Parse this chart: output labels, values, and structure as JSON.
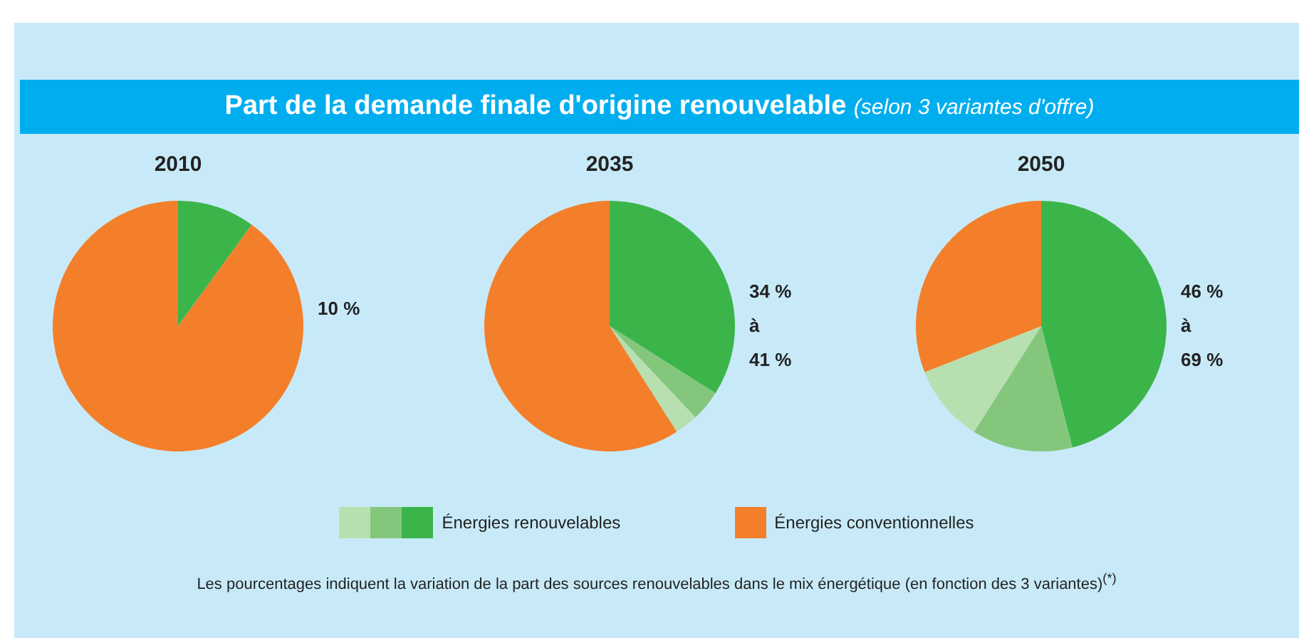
{
  "chart_data": [
    {
      "type": "other",
      "title": "Part de la demande finale d'origine renouvelable",
      "subtitle": "(selon 3 variantes d'offre)",
      "annotations": [
        "Les pourcentages indiquent la variation de la part des sources renouvelables dans le mix énergétique (en fonction des 3 variantes)$^{(*)}$"
      ]
    },
    {
      "type": "pie",
      "title": "2010",
      "categories": [
        null,
        null
      ],
      "values": [
        10,
        90
      ],
      "colors": [
        "#3bb54a",
        "#f47f2a"
      ],
      "annotations": [
        "10 %"
      ]
    },
    {
      "type": "pie",
      "title": "2035",
      "categories": [
        null,
        null,
        null,
        null
      ],
      "values": [
        34,
        4,
        3,
        59
      ],
      "colors": [
        "#3bb54a",
        "#84c77c",
        "#b8dfb0",
        "#f47f2a"
      ],
      "annotations": [
        "34 %",
        "à",
        "41 %"
      ]
    },
    {
      "type": "pie",
      "title": "2050",
      "categories": [
        "Énergies renouvelables",
        null,
        null,
        "Énergies conventionnelles"
      ],
      "values": [
        46,
        13,
        10,
        31
      ],
      "colors": [
        "#3bb54a",
        "#84c77c",
        "#b8dfb0",
        "#f47f2a"
      ],
      "annotations": [
        "46 %",
        "à",
        "69 %"
      ],
      "legend": "bottom"
    }
  ]
}
